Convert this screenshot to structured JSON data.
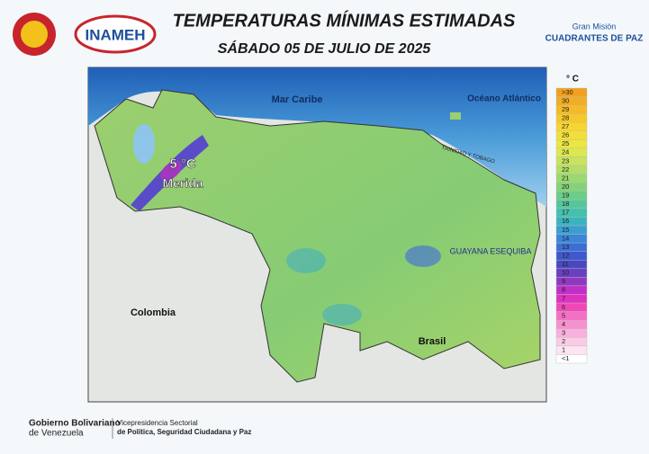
{
  "header": {
    "title": "TEMPERATURAS MÍNIMAS ESTIMADAS",
    "subtitle": "SÁBADO 05 DE JULIO DE 2025",
    "logo_left": "INAMEH",
    "logo_right_top": "Gran Misión",
    "logo_right_bottom": "CUADRANTES DE PAZ"
  },
  "map": {
    "labels": {
      "sea": "Mar Caribe",
      "ocean": "Océano Atlántico",
      "west": "Colombia",
      "south": "Brasil",
      "region": "GUAYANA ESEQUIBA",
      "trinidad": "TRINIDAD Y TOBAGO",
      "min_value": "5 °C",
      "min_place": "Merida"
    }
  },
  "legend": {
    "unit": "° C",
    "items": [
      {
        "label": ">30",
        "color": "#f0a020"
      },
      {
        "label": "30",
        "color": "#f2ad22"
      },
      {
        "label": "29",
        "color": "#f4bb26"
      },
      {
        "label": "28",
        "color": "#f6c82a"
      },
      {
        "label": "27",
        "color": "#f6d62e"
      },
      {
        "label": "26",
        "color": "#f2df38"
      },
      {
        "label": "25",
        "color": "#ece640"
      },
      {
        "label": "24",
        "color": "#dde84e"
      },
      {
        "label": "23",
        "color": "#c9e35c"
      },
      {
        "label": "22",
        "color": "#b3de68"
      },
      {
        "label": "21",
        "color": "#9cd870"
      },
      {
        "label": "20",
        "color": "#84d27a"
      },
      {
        "label": "19",
        "color": "#6ccc88"
      },
      {
        "label": "18",
        "color": "#55c69a"
      },
      {
        "label": "17",
        "color": "#44c0ac"
      },
      {
        "label": "16",
        "color": "#3ab4bc"
      },
      {
        "label": "15",
        "color": "#3a9fd0"
      },
      {
        "label": "14",
        "color": "#3a86d8"
      },
      {
        "label": "13",
        "color": "#3c6ed6"
      },
      {
        "label": "12",
        "color": "#4058cc"
      },
      {
        "label": "11",
        "color": "#4a48c0"
      },
      {
        "label": "10",
        "color": "#6840c0"
      },
      {
        "label": "9",
        "color": "#9038c4"
      },
      {
        "label": "8",
        "color": "#c030c8"
      },
      {
        "label": "7",
        "color": "#e030c0"
      },
      {
        "label": "6",
        "color": "#f048b8"
      },
      {
        "label": "5",
        "color": "#f470c4"
      },
      {
        "label": "4",
        "color": "#f690d0"
      },
      {
        "label": "3",
        "color": "#f8b0dc"
      },
      {
        "label": "2",
        "color": "#facbe6"
      },
      {
        "label": "1",
        "color": "#fce4f0"
      },
      {
        "label": "<1",
        "color": "#ffffff"
      }
    ]
  },
  "footer": {
    "gov_line1": "Gobierno Bolivariano",
    "gov_line2": "de Venezuela",
    "vp_line1": "Vicepresidencia Sectorial",
    "vp_line2": "de Política, Seguridad Ciudadana y Paz"
  }
}
